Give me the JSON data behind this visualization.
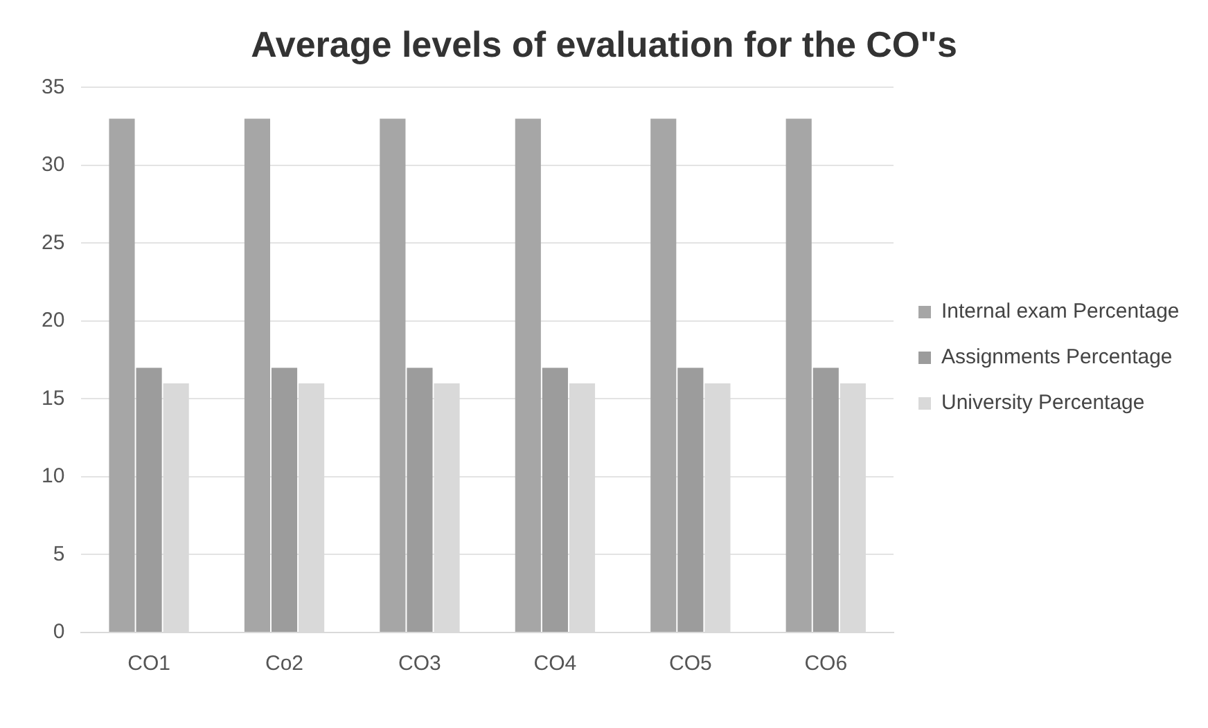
{
  "chart_data": {
    "type": "bar",
    "title": "Average levels of evaluation for the CO\"s",
    "categories": [
      "CO1",
      "Co2",
      "CO3",
      "CO4",
      "CO5",
      "CO6"
    ],
    "series": [
      {
        "name": "Internal exam Percentage",
        "color": "#a6a6a6",
        "values": [
          33,
          33,
          33,
          33,
          33,
          33
        ]
      },
      {
        "name": "Assignments Percentage",
        "color": "#9c9c9c",
        "values": [
          17,
          17,
          17,
          17,
          17,
          17
        ]
      },
      {
        "name": "University Percentage",
        "color": "#d9d9d9",
        "values": [
          16,
          16,
          16,
          16,
          16,
          16
        ]
      }
    ],
    "ylim": [
      0,
      35
    ],
    "yticks": [
      0,
      5,
      10,
      15,
      20,
      25,
      30,
      35
    ],
    "grid": "y",
    "legend": "right"
  }
}
